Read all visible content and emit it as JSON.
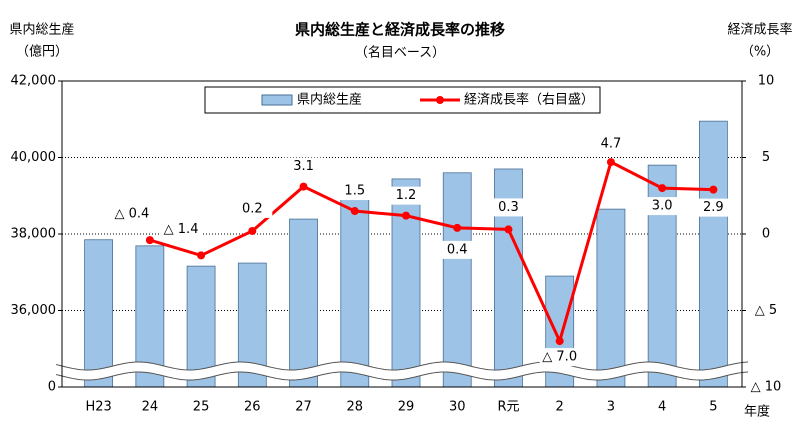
{
  "chart_data": {
    "type": "bar_line",
    "title": "県内総生産と経済成長率の推移",
    "subtitle": "（名目ベース）",
    "y_label": [
      "県内総生産",
      "（億円）"
    ],
    "y2_label": [
      "経済成長率",
      "（%）"
    ],
    "x_label": "年度",
    "categories": [
      "H23",
      "24",
      "25",
      "26",
      "27",
      "28",
      "29",
      "30",
      "R元",
      "2",
      "3",
      "4",
      "5"
    ],
    "series": [
      {
        "name": "県内総生産",
        "type": "bar",
        "color": "#9dc3e6",
        "values": [
          37850,
          37690,
          37160,
          37240,
          38390,
          38970,
          39440,
          39600,
          39700,
          36900,
          38650,
          39800,
          40950
        ]
      },
      {
        "name": "経済成長率（右目盛）",
        "type": "line",
        "axis": "y2",
        "color": "#ff0000",
        "values": [
          null,
          -0.4,
          -1.4,
          0.2,
          3.1,
          1.5,
          1.2,
          0.4,
          0.3,
          -7.0,
          4.7,
          3.0,
          2.9
        ],
        "value_labels": [
          null,
          "△ 0.4",
          "△ 1.4",
          "0.2",
          "3.1",
          "1.5",
          "1.2",
          "0.4",
          "0.3",
          "△ 7.0",
          "4.7",
          "3.0",
          "2.9"
        ]
      }
    ],
    "ylim": [
      34000,
      42000
    ],
    "axis_break": true,
    "yticks": [
      {
        "value": 0,
        "label": "0"
      },
      {
        "value": 36000,
        "label": "36,000"
      },
      {
        "value": 38000,
        "label": "38,000"
      },
      {
        "value": 40000,
        "label": "40,000"
      },
      {
        "value": 42000,
        "label": "42,000"
      }
    ],
    "y2lim": [
      -10,
      10
    ],
    "y2ticks": [
      {
        "value": -10,
        "label": "△ 10"
      },
      {
        "value": -5,
        "label": "△ 5"
      },
      0,
      5,
      10
    ],
    "grid": true
  }
}
